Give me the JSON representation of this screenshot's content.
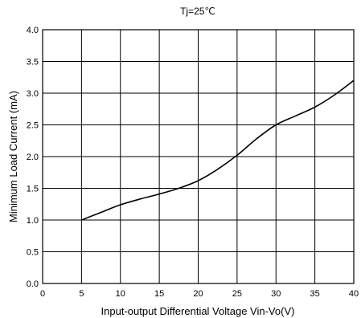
{
  "chart_data": {
    "type": "line",
    "title": "Tj=25℃",
    "xlabel": "Input-output Differential Voltage Vin-Vo(V)",
    "ylabel": "Minimum Load Current (mA)",
    "xlim": [
      0,
      40
    ],
    "ylim": [
      0.0,
      4.0
    ],
    "xticks": [
      0,
      5,
      10,
      15,
      20,
      25,
      30,
      35,
      40
    ],
    "xtick_labels": [
      "0",
      "5",
      "10",
      "15",
      "20",
      "25",
      "30",
      "35",
      "40"
    ],
    "yticks": [
      0.0,
      0.5,
      1.0,
      1.5,
      2.0,
      2.5,
      3.0,
      3.5,
      4.0
    ],
    "ytick_labels": [
      "0.0",
      "0.5",
      "1.0",
      "1.5",
      "2.0",
      "2.5",
      "3.0",
      "3.5",
      "4.0"
    ],
    "grid": true,
    "series": [
      {
        "x": [
          5,
          7.5,
          10,
          12.5,
          15,
          17.5,
          20,
          22.5,
          25,
          27.5,
          30,
          32.5,
          35,
          37.5,
          40
        ],
        "y": [
          1.0,
          1.12,
          1.24,
          1.33,
          1.41,
          1.5,
          1.62,
          1.8,
          2.02,
          2.28,
          2.5,
          2.64,
          2.78,
          2.97,
          3.2
        ]
      }
    ]
  },
  "colors": {
    "line": "#000000",
    "grid": "#000000",
    "background": "#ffffff"
  }
}
